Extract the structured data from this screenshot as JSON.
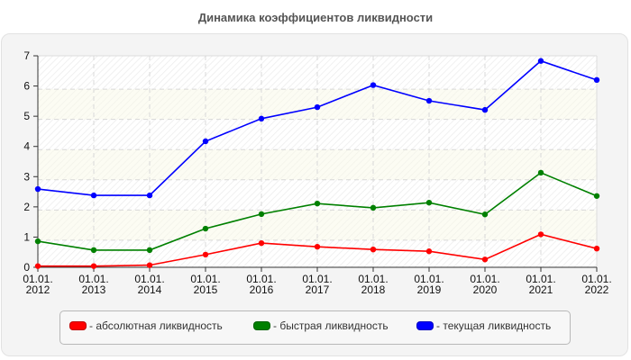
{
  "title": "Динамика коэффициентов ликвидности",
  "colors": {
    "panel_bg": "#f4f4f4",
    "grid": "#d8d8d8",
    "axis": "#333333",
    "band_alt": "#fcfcf3"
  },
  "legend": {
    "items": [
      {
        "label": "- абсолютная ликвидность",
        "color": "#ff0000"
      },
      {
        "label": "- быстрая ликвидность",
        "color": "#008000"
      },
      {
        "label": "- текущая ликвидность",
        "color": "#0000ff"
      }
    ]
  },
  "chart_data": {
    "type": "line",
    "title": "Динамика коэффициентов ликвидности",
    "xlabel": "",
    "ylabel": "",
    "categories": [
      "01.01.\n2012",
      "01.01.\n2013",
      "01.01.\n2014",
      "01.01.\n2015",
      "01.01.\n2016",
      "01.01.\n2017",
      "01.01.\n2018",
      "01.01.\n2019",
      "01.01.\n2020",
      "01.01.\n2021",
      "01.01.\n2022"
    ],
    "ylim": [
      0,
      7
    ],
    "yticks": [
      0,
      1,
      2,
      3,
      4,
      5,
      6,
      7
    ],
    "grid": true,
    "legend_position": "bottom",
    "series": [
      {
        "name": "абсолютная ликвидность",
        "color": "#ff0000",
        "values": [
          0.04,
          0.04,
          0.07,
          0.42,
          0.8,
          0.68,
          0.59,
          0.53,
          0.26,
          1.09,
          0.62
        ]
      },
      {
        "name": "быстрая ликвидность",
        "color": "#008000",
        "values": [
          0.86,
          0.57,
          0.57,
          1.28,
          1.76,
          2.11,
          1.97,
          2.14,
          1.75,
          3.13,
          2.36
        ]
      },
      {
        "name": "текущая ликвидность",
        "color": "#0000ff",
        "values": [
          2.59,
          2.38,
          2.38,
          4.17,
          4.92,
          5.3,
          6.03,
          5.51,
          5.21,
          6.83,
          6.2
        ]
      }
    ]
  }
}
